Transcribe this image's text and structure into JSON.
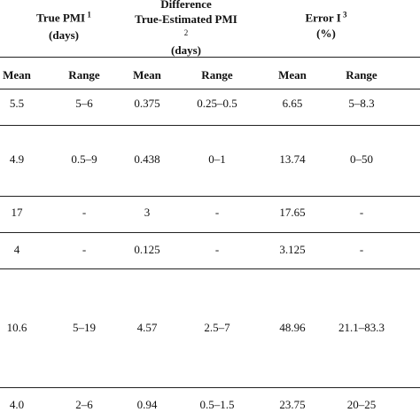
{
  "header": {
    "groups": [
      {
        "lines": [
          "True PMI"
        ],
        "sup": "1",
        "unit": "(days)"
      },
      {
        "lines": [
          "Difference",
          "True-Estimated PMI"
        ],
        "sup": "2",
        "unit": "(days)"
      },
      {
        "lines": [
          "Error I"
        ],
        "sup": "3",
        "unit": "(%)"
      }
    ],
    "columns": [
      "Mean",
      "Range",
      "Mean",
      "Range",
      "Mean",
      "Range"
    ]
  },
  "table": {
    "rows": [
      [
        "5.5",
        "5–6",
        "0.375",
        "0.25–0.5",
        "6.65",
        "5–8.3"
      ],
      [
        "4.9",
        "0.5–9",
        "0.438",
        "0–1",
        "13.74",
        "0–50"
      ],
      [
        "17",
        "-",
        "3",
        "-",
        "17.65",
        "-"
      ],
      [
        "4",
        "-",
        "0.125",
        "-",
        "3.125",
        "-"
      ],
      [
        "10.6",
        "5–19",
        "4.57",
        "2.5–7",
        "48.96",
        "21.1–83.3"
      ],
      [
        "4.0",
        "2–6",
        "0.94",
        "0.5–1.5",
        "23.75",
        "20–25"
      ]
    ]
  }
}
